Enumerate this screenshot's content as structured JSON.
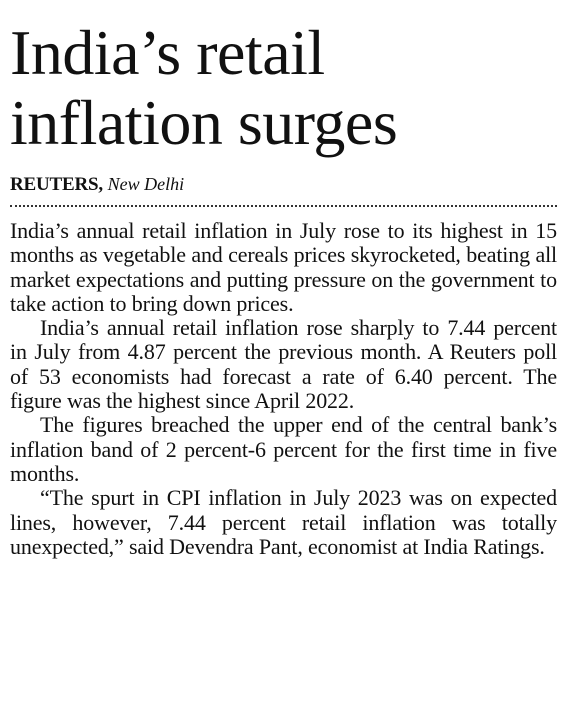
{
  "article": {
    "headline_line1": "India’s retail",
    "headline_line2": "inflation surges",
    "byline": {
      "agency": "REUTERS,",
      "place": "New Delhi"
    },
    "paragraphs": [
      "India’s annual retail inflation in July rose to its highest in 15 months as vegetable and cereals prices skyrocketed, beating all market expectations and putting pressure on the government to take action to bring down prices.",
      "India’s annual retail inflation rose sharply to 7.44 percent in July from 4.87 percent the previous month. A Reuters poll of 53 economists had forecast a rate of 6.40 percent. The figure was the highest since April 2022.",
      "The figures breached the upper end of the central bank’s inflation band of 2 percent-6 percent for the first time in five months.",
      "“The spurt in CPI inflation in July 2023 was on expected lines, however, 7.44 percent retail inflation was totally unexpected,” said Devendra Pant, economist at India Ratings."
    ]
  }
}
